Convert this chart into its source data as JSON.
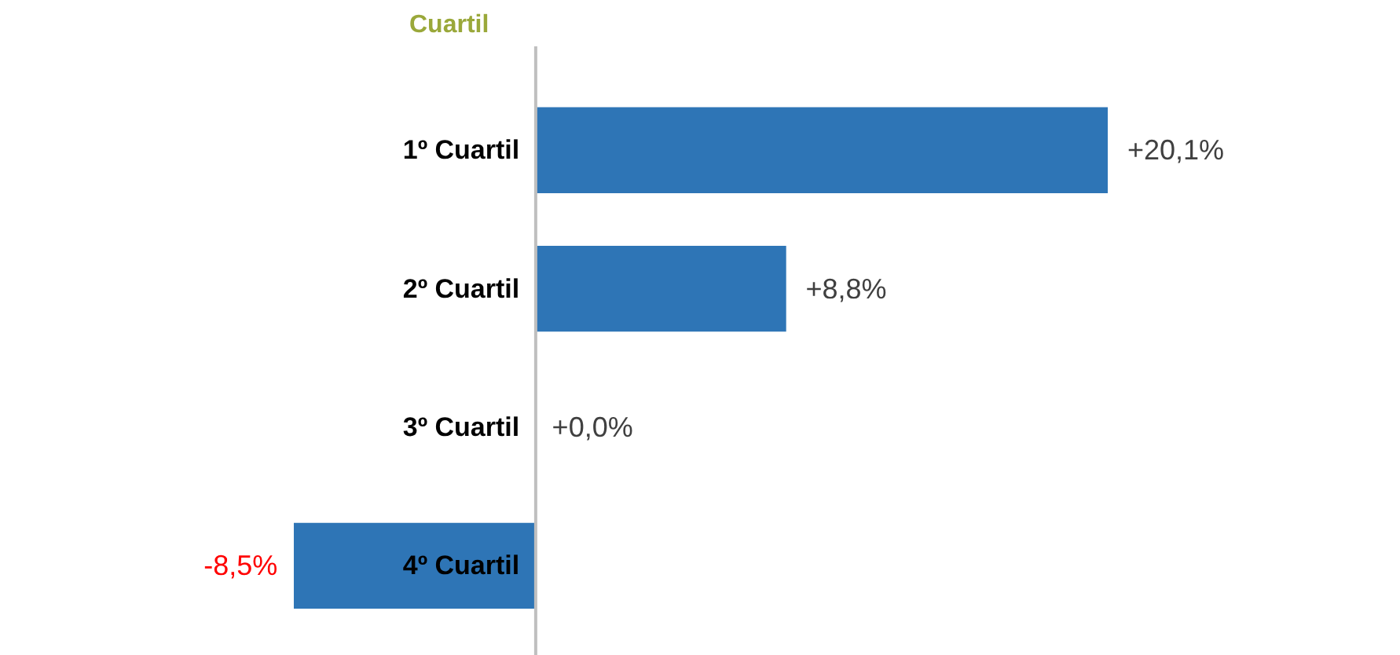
{
  "chart_data": {
    "type": "bar",
    "orientation": "horizontal",
    "title": "Cuartil",
    "categories": [
      "1º Cuartil",
      "2º Cuartil",
      "3º Cuartil",
      "4º Cuartil"
    ],
    "values": [
      20.1,
      8.8,
      0.0,
      -8.5
    ],
    "color": "#2e75b6",
    "value_labels": [
      "+20,1%",
      "+8,8%",
      "+0,0%",
      "-8,5%"
    ],
    "grid": false
  }
}
